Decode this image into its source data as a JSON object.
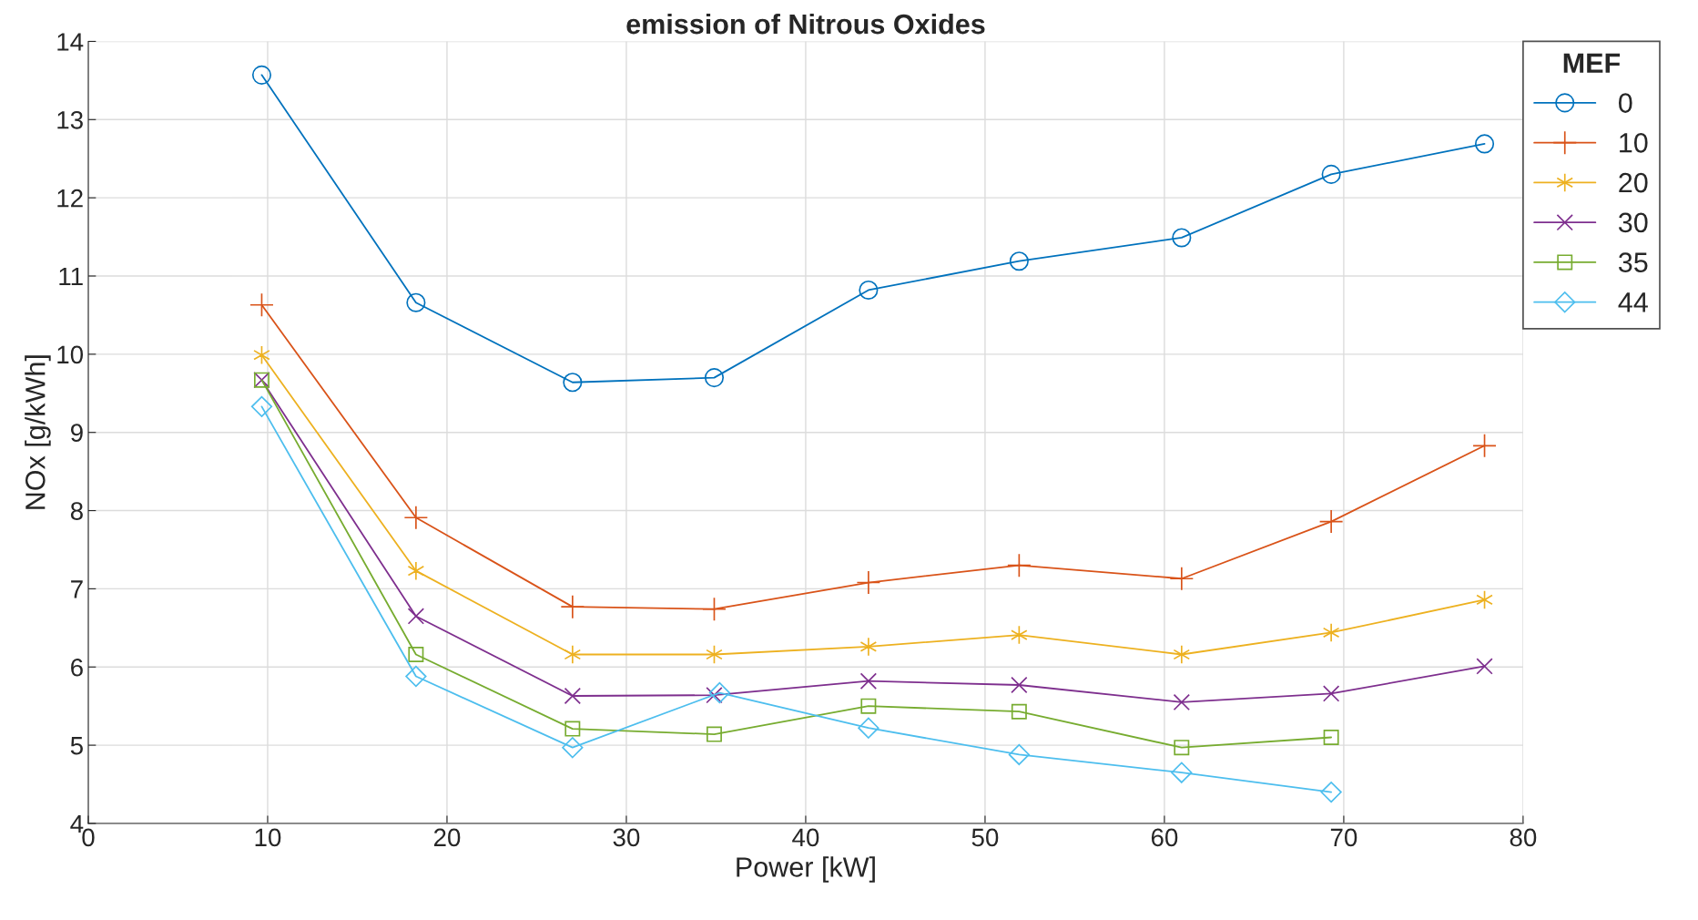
{
  "chart_data": {
    "type": "line",
    "title": "emission of Nitrous Oxides",
    "xlabel": "Power [kW]",
    "ylabel": "NOx [g/kWh]",
    "legend_title": "MEF",
    "legend": "top right",
    "x": [
      9.67,
      18.27,
      27.0,
      34.9,
      43.5,
      51.9,
      60.96,
      69.3,
      77.85
    ],
    "series": [
      {
        "name": "0",
        "color": "#0072bd",
        "marker": "circle",
        "values": [
          13.57,
          10.66,
          9.64,
          9.7,
          10.82,
          11.19,
          11.49,
          12.3,
          12.69
        ]
      },
      {
        "name": "10",
        "color": "#d95319",
        "marker": "cross",
        "values": [
          10.63,
          7.91,
          6.77,
          6.74,
          7.08,
          7.3,
          7.13,
          7.86,
          8.83
        ]
      },
      {
        "name": "20",
        "color": "#edb120",
        "marker": "cross",
        "values": [
          9.99,
          7.23,
          6.16,
          6.16,
          6.26,
          6.41,
          6.16,
          6.44,
          6.86
        ]
      },
      {
        "name": "30",
        "color": "#7e2f8e",
        "marker": "x",
        "values": [
          9.67,
          6.65,
          5.63,
          5.64,
          5.82,
          5.77,
          5.55,
          5.66,
          6.01
        ]
      },
      {
        "name": "35",
        "color": "#77ac30",
        "marker": "square",
        "values": [
          9.67,
          6.16,
          5.21,
          5.14,
          5.5,
          5.43,
          4.97,
          5.1,
          null
        ]
      },
      {
        "name": "44",
        "color": "#4dbeee",
        "marker": "diamond",
        "x": [
          9.67,
          18.27,
          27.0,
          35.2,
          43.5,
          51.9,
          60.96,
          69.3
        ],
        "values": [
          9.33,
          5.88,
          4.97,
          5.67,
          5.22,
          4.88,
          4.65,
          4.4
        ]
      }
    ],
    "xlim": [
      0,
      80
    ],
    "xticks": [
      0,
      10,
      20,
      30,
      40,
      50,
      60,
      70,
      80
    ],
    "ylim": [
      4,
      14
    ],
    "yticks": [
      4,
      5,
      6,
      7,
      8,
      9,
      10,
      11,
      12,
      13,
      14
    ],
    "grid": true
  }
}
